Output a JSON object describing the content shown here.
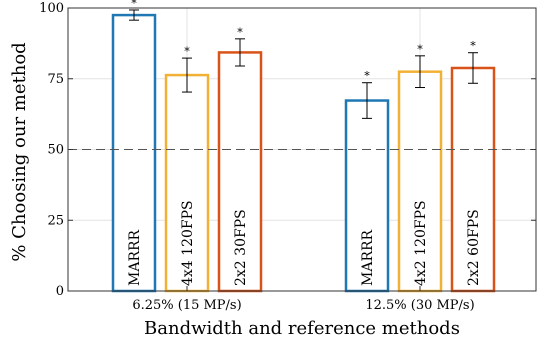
{
  "chart_data": {
    "type": "bar",
    "ylabel": "% Choosing our method",
    "xlabel": "Bandwidth and reference methods",
    "ylim": [
      0,
      100
    ],
    "yticks": [
      0,
      25,
      50,
      75,
      100
    ],
    "grid": true,
    "reference_line": 50,
    "groups": [
      {
        "label": "6.25% (15 MP/s)",
        "bars": [
          {
            "name": "MARRR",
            "value": 97.5,
            "error": 1.8,
            "significant": true,
            "color": "#1f77b4"
          },
          {
            "name": "4x4 120FPS",
            "value": 76.3,
            "error": 6.0,
            "significant": true,
            "color": "#f2b134"
          },
          {
            "name": "2x2 30FPS",
            "value": 84.3,
            "error": 4.8,
            "significant": true,
            "color": "#d95319"
          }
        ]
      },
      {
        "label": "12.5% (30 MP/s)",
        "bars": [
          {
            "name": "MARRR",
            "value": 67.3,
            "error": 6.3,
            "significant": true,
            "color": "#1f77b4"
          },
          {
            "name": "4x2 120FPS",
            "value": 77.5,
            "error": 5.6,
            "significant": true,
            "color": "#f2b134"
          },
          {
            "name": "2x2 60FPS",
            "value": 78.8,
            "error": 5.4,
            "significant": true,
            "color": "#d95319"
          }
        ]
      }
    ],
    "significance_marker": "*"
  }
}
